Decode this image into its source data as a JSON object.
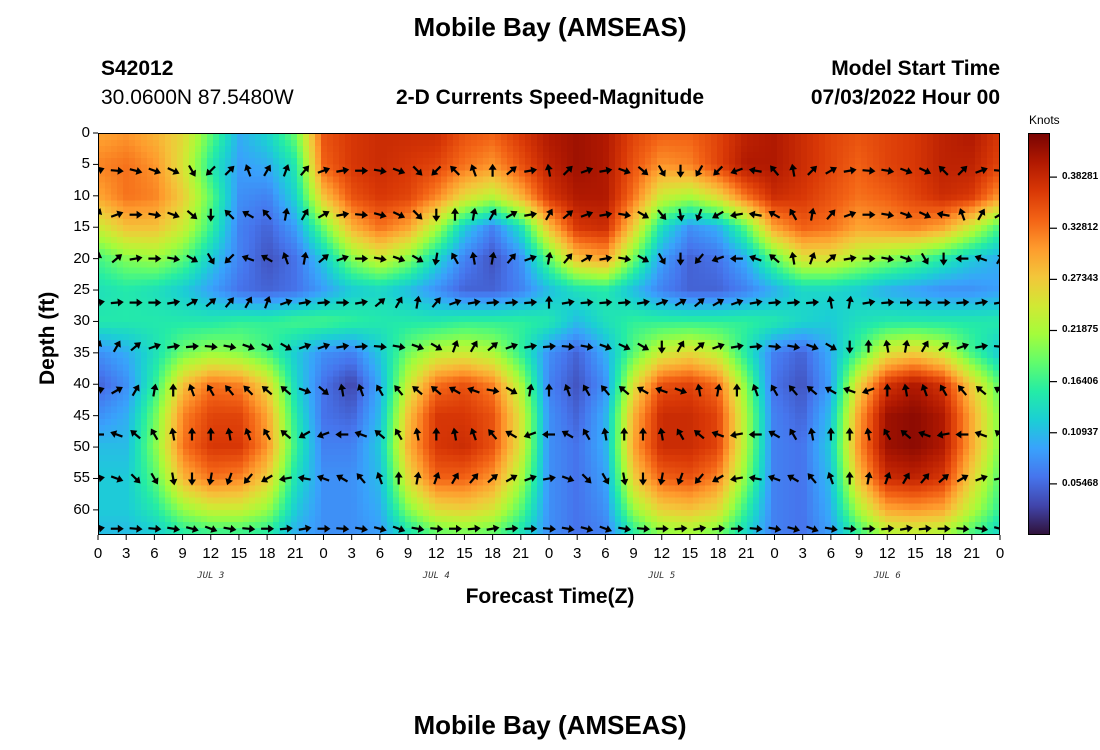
{
  "header": {
    "title": "Mobile Bay (AMSEAS)",
    "station_id": "S42012",
    "coords": "30.0600N  87.5480W",
    "subtitle": "2-D Currents Speed-Magnitude",
    "model_start_label": "Model Start Time",
    "model_start_value": "07/03/2022 Hour 00",
    "footer_title": "Mobile Bay (AMSEAS)"
  },
  "colorbar": {
    "unit": "Knots",
    "ticks": [
      "0.38281",
      "0.32812",
      "0.27343",
      "0.21875",
      "0.16406",
      "0.10937",
      "0.05468"
    ],
    "colors": [
      "#30123b",
      "#4145ab",
      "#4675ed",
      "#39a2fc",
      "#1bcfd4",
      "#24eca6",
      "#61fc6c",
      "#a4fc3b",
      "#d1e834",
      "#f3c63a",
      "#fe9b2d",
      "#f36315",
      "#d93806",
      "#b11901",
      "#7a0402"
    ]
  },
  "chart_data": {
    "type": "heatmap",
    "title": "2-D Currents Speed-Magnitude",
    "xlabel": "Forecast Time(Z)",
    "ylabel": "Depth (ft)",
    "x_ticks": [
      "0",
      "3",
      "6",
      "9",
      "12",
      "15",
      "18",
      "21",
      "0",
      "3",
      "6",
      "9",
      "12",
      "15",
      "18",
      "21",
      "0",
      "3",
      "6",
      "9",
      "12",
      "15",
      "18",
      "21",
      "0",
      "3",
      "6",
      "9",
      "12",
      "15",
      "18",
      "21",
      "0"
    ],
    "day_labels": [
      "JUL 3",
      "JUL 4",
      "JUL 5",
      "JUL 6"
    ],
    "y_ticks": [
      "0",
      "5",
      "10",
      "15",
      "20",
      "25",
      "30",
      "35",
      "40",
      "45",
      "50",
      "55",
      "60"
    ],
    "xlim_hours": [
      0,
      96
    ],
    "ylim_ft": [
      0,
      64
    ],
    "depths_ft": [
      0,
      5,
      10,
      15,
      20,
      25,
      30,
      35,
      40,
      45,
      50,
      55,
      60,
      64
    ],
    "times_hours": [
      0,
      3,
      6,
      9,
      12,
      15,
      18,
      21,
      24,
      27,
      30,
      33,
      36,
      39,
      42,
      45,
      48,
      51,
      54,
      57,
      60,
      63,
      66,
      69,
      72,
      75,
      78,
      81,
      84,
      87,
      90,
      93,
      96
    ],
    "value_range_knots": [
      0.0,
      0.43
    ],
    "speed_knots": [
      [
        0.3,
        0.31,
        0.29,
        0.26,
        0.18,
        0.1,
        0.13,
        0.19,
        0.35,
        0.37,
        0.38,
        0.38,
        0.38,
        0.35,
        0.34,
        0.37,
        0.4,
        0.41,
        0.4,
        0.36,
        0.34,
        0.34,
        0.36,
        0.39,
        0.4,
        0.38,
        0.36,
        0.35,
        0.36,
        0.37,
        0.39,
        0.4,
        0.37
      ],
      [
        0.32,
        0.33,
        0.31,
        0.25,
        0.15,
        0.09,
        0.1,
        0.15,
        0.34,
        0.37,
        0.38,
        0.37,
        0.36,
        0.33,
        0.31,
        0.35,
        0.39,
        0.41,
        0.4,
        0.35,
        0.31,
        0.32,
        0.36,
        0.4,
        0.4,
        0.38,
        0.36,
        0.34,
        0.36,
        0.37,
        0.39,
        0.39,
        0.36
      ],
      [
        0.3,
        0.33,
        0.32,
        0.27,
        0.18,
        0.08,
        0.07,
        0.13,
        0.28,
        0.35,
        0.37,
        0.36,
        0.32,
        0.26,
        0.23,
        0.29,
        0.37,
        0.4,
        0.4,
        0.33,
        0.24,
        0.22,
        0.26,
        0.33,
        0.38,
        0.37,
        0.35,
        0.33,
        0.34,
        0.36,
        0.38,
        0.37,
        0.31
      ],
      [
        0.24,
        0.28,
        0.28,
        0.24,
        0.16,
        0.07,
        0.05,
        0.09,
        0.19,
        0.29,
        0.33,
        0.3,
        0.22,
        0.12,
        0.07,
        0.14,
        0.28,
        0.37,
        0.38,
        0.27,
        0.14,
        0.08,
        0.1,
        0.18,
        0.3,
        0.34,
        0.33,
        0.3,
        0.31,
        0.32,
        0.3,
        0.24,
        0.17
      ],
      [
        0.17,
        0.2,
        0.21,
        0.18,
        0.12,
        0.07,
        0.04,
        0.06,
        0.12,
        0.2,
        0.24,
        0.2,
        0.13,
        0.07,
        0.04,
        0.08,
        0.18,
        0.28,
        0.3,
        0.19,
        0.09,
        0.05,
        0.06,
        0.1,
        0.18,
        0.25,
        0.25,
        0.22,
        0.2,
        0.18,
        0.15,
        0.12,
        0.1
      ],
      [
        0.14,
        0.15,
        0.14,
        0.12,
        0.09,
        0.06,
        0.05,
        0.06,
        0.09,
        0.12,
        0.13,
        0.11,
        0.08,
        0.05,
        0.05,
        0.07,
        0.11,
        0.14,
        0.15,
        0.11,
        0.07,
        0.05,
        0.05,
        0.07,
        0.1,
        0.13,
        0.13,
        0.12,
        0.1,
        0.09,
        0.08,
        0.08,
        0.09
      ],
      [
        0.15,
        0.15,
        0.15,
        0.15,
        0.15,
        0.16,
        0.16,
        0.17,
        0.17,
        0.16,
        0.15,
        0.15,
        0.15,
        0.16,
        0.16,
        0.16,
        0.15,
        0.11,
        0.14,
        0.16,
        0.16,
        0.16,
        0.16,
        0.16,
        0.15,
        0.13,
        0.12,
        0.14,
        0.15,
        0.15,
        0.15,
        0.15,
        0.15
      ],
      [
        0.08,
        0.1,
        0.14,
        0.19,
        0.21,
        0.2,
        0.17,
        0.12,
        0.08,
        0.07,
        0.12,
        0.19,
        0.23,
        0.24,
        0.22,
        0.16,
        0.08,
        0.05,
        0.1,
        0.18,
        0.24,
        0.26,
        0.23,
        0.15,
        0.07,
        0.05,
        0.1,
        0.17,
        0.25,
        0.27,
        0.24,
        0.17,
        0.12
      ],
      [
        0.05,
        0.08,
        0.16,
        0.28,
        0.33,
        0.32,
        0.26,
        0.13,
        0.06,
        0.03,
        0.1,
        0.24,
        0.33,
        0.35,
        0.32,
        0.22,
        0.07,
        0.04,
        0.08,
        0.25,
        0.35,
        0.36,
        0.33,
        0.2,
        0.06,
        0.04,
        0.09,
        0.26,
        0.37,
        0.4,
        0.37,
        0.27,
        0.18
      ],
      [
        0.08,
        0.1,
        0.19,
        0.32,
        0.36,
        0.36,
        0.3,
        0.15,
        0.06,
        0.05,
        0.11,
        0.28,
        0.37,
        0.37,
        0.35,
        0.25,
        0.08,
        0.05,
        0.1,
        0.29,
        0.38,
        0.38,
        0.36,
        0.22,
        0.07,
        0.05,
        0.11,
        0.3,
        0.41,
        0.42,
        0.4,
        0.3,
        0.2
      ],
      [
        0.11,
        0.11,
        0.2,
        0.33,
        0.37,
        0.37,
        0.31,
        0.16,
        0.07,
        0.07,
        0.12,
        0.29,
        0.37,
        0.38,
        0.35,
        0.25,
        0.08,
        0.06,
        0.1,
        0.3,
        0.38,
        0.38,
        0.36,
        0.22,
        0.07,
        0.06,
        0.12,
        0.31,
        0.41,
        0.42,
        0.4,
        0.3,
        0.2
      ],
      [
        0.12,
        0.12,
        0.18,
        0.29,
        0.33,
        0.32,
        0.27,
        0.14,
        0.08,
        0.08,
        0.11,
        0.26,
        0.34,
        0.34,
        0.31,
        0.22,
        0.08,
        0.06,
        0.09,
        0.27,
        0.34,
        0.35,
        0.32,
        0.2,
        0.07,
        0.06,
        0.11,
        0.28,
        0.38,
        0.39,
        0.37,
        0.27,
        0.18
      ],
      [
        0.12,
        0.12,
        0.15,
        0.21,
        0.24,
        0.24,
        0.21,
        0.12,
        0.08,
        0.08,
        0.1,
        0.2,
        0.26,
        0.27,
        0.25,
        0.18,
        0.08,
        0.06,
        0.08,
        0.21,
        0.27,
        0.28,
        0.26,
        0.16,
        0.07,
        0.06,
        0.1,
        0.22,
        0.3,
        0.31,
        0.3,
        0.23,
        0.16
      ],
      [
        0.11,
        0.11,
        0.12,
        0.15,
        0.16,
        0.16,
        0.15,
        0.1,
        0.08,
        0.08,
        0.09,
        0.14,
        0.18,
        0.19,
        0.18,
        0.14,
        0.08,
        0.06,
        0.07,
        0.15,
        0.2,
        0.21,
        0.19,
        0.13,
        0.07,
        0.06,
        0.09,
        0.16,
        0.22,
        0.23,
        0.22,
        0.17,
        0.13
      ]
    ],
    "vector_depths_ft": [
      6,
      13,
      20,
      27,
      34,
      41,
      48,
      55,
      63
    ],
    "vector_times_hours": [
      0,
      2,
      4,
      6,
      8,
      10,
      12,
      14,
      16,
      18,
      20,
      22,
      24,
      26,
      28,
      30,
      32,
      34,
      36,
      38,
      40,
      42,
      44,
      46,
      48,
      50,
      52,
      54,
      56,
      58,
      60,
      62,
      64,
      66,
      68,
      70,
      72,
      74,
      76,
      78,
      80,
      82,
      84,
      86,
      88,
      90,
      92,
      94,
      96
    ],
    "vector_direction_note": "degrees, screen angle (0 = east/right, 90 = down)",
    "vector_dir_deg": [
      [
        -20,
        5,
        15,
        20,
        25,
        60,
        135,
        -45,
        -110,
        -60,
        -70,
        -50,
        -20,
        -10,
        0,
        10,
        20,
        45,
        135,
        -135,
        -110,
        -90,
        -40,
        -10,
        -100,
        -45,
        -20,
        -10,
        20,
        40,
        60,
        90,
        120,
        135,
        160,
        -170,
        -130,
        -100,
        -45,
        -30,
        -10,
        5,
        10,
        20,
        25,
        -135,
        -45,
        -20,
        5
      ],
      [
        -70,
        -20,
        0,
        10,
        20,
        40,
        90,
        -135,
        -150,
        -130,
        -80,
        -60,
        -30,
        -10,
        5,
        15,
        25,
        45,
        90,
        -90,
        -80,
        -60,
        -30,
        -10,
        -60,
        -40,
        -20,
        -10,
        10,
        30,
        50,
        80,
        110,
        150,
        170,
        -170,
        -150,
        -120,
        -80,
        -50,
        -20,
        0,
        10,
        20,
        25,
        -170,
        -110,
        -60,
        -30
      ],
      [
        -80,
        -40,
        -10,
        0,
        10,
        30,
        60,
        135,
        -160,
        -150,
        -110,
        -80,
        -40,
        -20,
        0,
        10,
        20,
        30,
        100,
        -120,
        -100,
        -80,
        -50,
        -20,
        -80,
        -50,
        -30,
        -10,
        10,
        30,
        60,
        90,
        130,
        160,
        180,
        -160,
        -140,
        -100,
        -70,
        -40,
        -10,
        0,
        10,
        20,
        60,
        90,
        180,
        -160,
        -60
      ],
      [
        -10,
        -5,
        0,
        0,
        -10,
        -30,
        -40,
        -50,
        -60,
        -70,
        -20,
        -10,
        -5,
        0,
        -10,
        -40,
        -60,
        -80,
        -50,
        -20,
        -10,
        -5,
        -5,
        -5,
        -90,
        -10,
        -5,
        -5,
        -5,
        -10,
        -20,
        -30,
        -40,
        -30,
        -20,
        -10,
        -5,
        -5,
        -5,
        -100,
        -80,
        -10,
        -5,
        0,
        0,
        0,
        -5,
        -10,
        -10
      ],
      [
        -70,
        -60,
        -40,
        -20,
        -10,
        -5,
        5,
        10,
        20,
        25,
        30,
        -20,
        -20,
        -10,
        -5,
        5,
        10,
        20,
        30,
        -70,
        -60,
        -40,
        -20,
        -10,
        -5,
        5,
        10,
        20,
        25,
        30,
        90,
        -60,
        -40,
        -20,
        -10,
        -5,
        5,
        10,
        20,
        30,
        90,
        -90,
        -100,
        -80,
        -60,
        -40,
        -20,
        -10,
        5
      ],
      [
        -20,
        -30,
        -60,
        -80,
        -90,
        -110,
        -120,
        -130,
        -135,
        -140,
        -140,
        20,
        40,
        -100,
        -110,
        -120,
        -130,
        -140,
        -140,
        -150,
        -160,
        10,
        30,
        -80,
        -90,
        -110,
        -120,
        -130,
        -140,
        -150,
        -160,
        20,
        -100,
        -80,
        -90,
        -110,
        -120,
        -130,
        -140,
        -150,
        -160,
        160,
        -90,
        -100,
        -110,
        -120,
        -130,
        -140,
        -150
      ],
      [
        180,
        -160,
        -140,
        -120,
        -100,
        -90,
        -90,
        -100,
        -110,
        -120,
        -140,
        150,
        160,
        180,
        -160,
        -140,
        -120,
        -100,
        -90,
        -100,
        -110,
        -130,
        -150,
        160,
        180,
        -150,
        -120,
        -100,
        -90,
        -90,
        -100,
        -120,
        -140,
        -160,
        170,
        180,
        -150,
        -120,
        -100,
        -90,
        -90,
        -100,
        -120,
        -140,
        -160,
        170,
        180,
        -160,
        -140
      ],
      [
        -10,
        20,
        45,
        60,
        80,
        90,
        100,
        110,
        130,
        150,
        170,
        -170,
        -160,
        -150,
        -130,
        -110,
        -90,
        -80,
        -70,
        -60,
        -50,
        -40,
        -30,
        -20,
        -10,
        20,
        45,
        60,
        80,
        90,
        100,
        110,
        130,
        150,
        170,
        -170,
        -160,
        -150,
        -130,
        -110,
        -90,
        -80,
        -70,
        -60,
        -50,
        -40,
        -30,
        -20,
        -10
      ],
      [
        -10,
        0,
        5,
        5,
        10,
        15,
        20,
        10,
        5,
        0,
        -5,
        -10,
        0,
        5,
        10,
        15,
        20,
        10,
        5,
        0,
        -5,
        -10,
        -5,
        0,
        5,
        10,
        15,
        20,
        10,
        5,
        0,
        -5,
        -10,
        -5,
        0,
        5,
        10,
        15,
        20,
        10,
        5,
        0,
        -5,
        -10,
        -5,
        0,
        5,
        10,
        15
      ]
    ]
  }
}
